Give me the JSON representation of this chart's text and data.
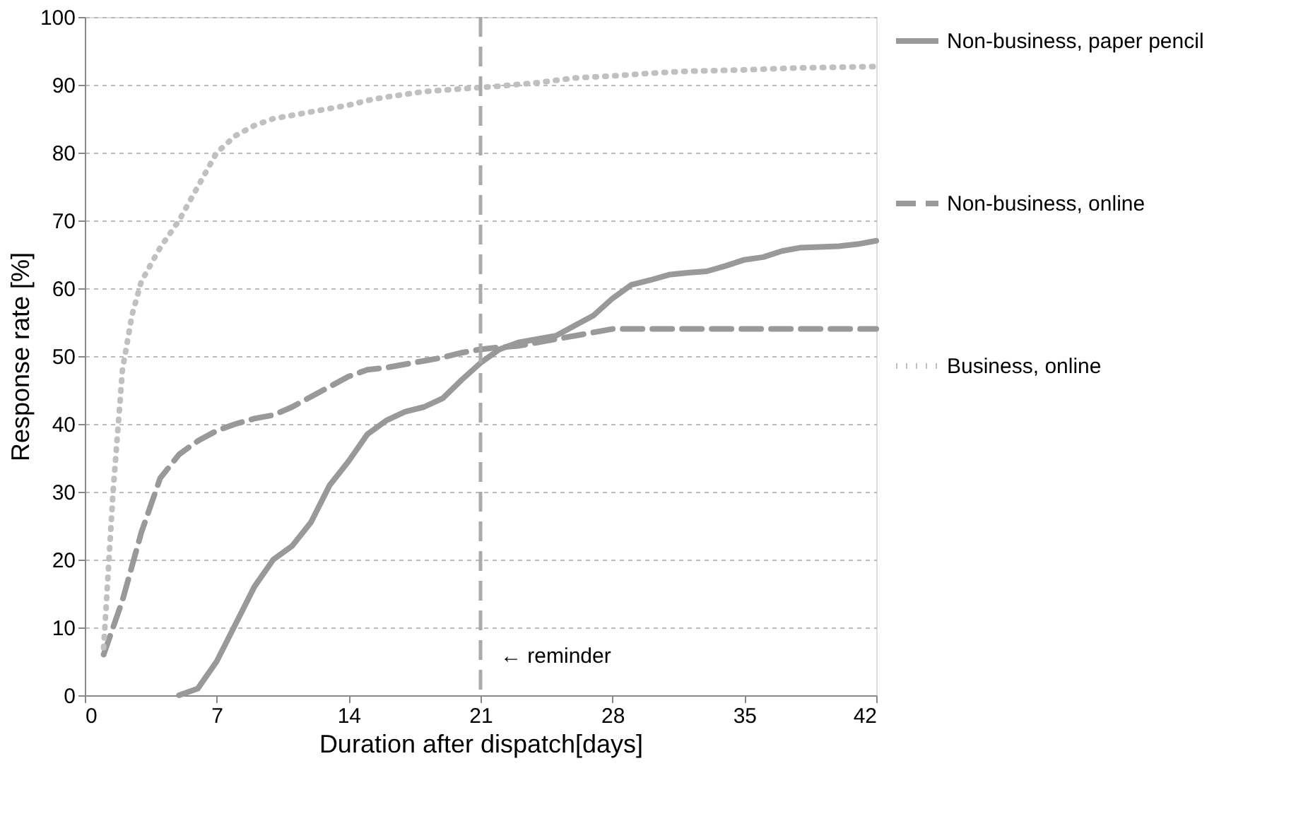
{
  "chart_data": {
    "type": "line",
    "xlabel": "Duration after dispatch[days]",
    "ylabel": "Response rate [%]",
    "xlim": [
      0,
      42
    ],
    "xticks": [
      0,
      7,
      14,
      21,
      28,
      35,
      42
    ],
    "ylim": [
      0,
      100
    ],
    "yticks": [
      0,
      10,
      20,
      30,
      40,
      50,
      60,
      70,
      80,
      90,
      100
    ],
    "grid": "y",
    "legend": "right",
    "marker": "none",
    "series": [
      {
        "name": "Non-business, paper pencil",
        "color": "#999999",
        "line_style": "solid",
        "x": [
          5,
          6,
          7,
          8,
          9,
          10,
          11,
          12,
          13,
          14,
          15,
          16,
          17,
          18,
          19,
          20,
          21,
          22,
          23,
          24,
          25,
          26,
          27,
          28,
          29,
          30,
          31,
          32,
          33,
          34,
          35,
          36,
          37,
          38,
          39,
          40,
          41,
          42
        ],
        "values": [
          0,
          1,
          5,
          10.5,
          16,
          20,
          22,
          25.5,
          31,
          34.5,
          38.5,
          40.5,
          41.8,
          42.5,
          43.8,
          46.5,
          49,
          51,
          52,
          52.5,
          53,
          54.5,
          56,
          58.5,
          60.5,
          61.2,
          62,
          62.3,
          62.5,
          63.3,
          64.2,
          64.6,
          65.5,
          66,
          66.1,
          66.2,
          66.5,
          67
        ]
      },
      {
        "name": "Non-business, online",
        "color": "#999999",
        "line_style": "dashed",
        "x": [
          1,
          2,
          3,
          4,
          5,
          6,
          7,
          8,
          9,
          10,
          11,
          12,
          13,
          14,
          15,
          16,
          17,
          18,
          19,
          20,
          21,
          22,
          23,
          24,
          25,
          26,
          27,
          28,
          30,
          35,
          42
        ],
        "values": [
          6,
          14,
          24,
          32,
          35.5,
          37.5,
          39,
          40,
          40.8,
          41.3,
          42.5,
          44,
          45.5,
          47,
          48,
          48.3,
          48.8,
          49.3,
          49.8,
          50.5,
          51,
          51.3,
          51.5,
          52,
          52.5,
          53,
          53.5,
          54,
          54,
          54,
          54
        ]
      },
      {
        "name": "Business, online",
        "color": "#c0c0c0",
        "line_style": "dotted",
        "x": [
          1,
          1.5,
          2,
          2.5,
          3,
          4,
          5,
          6,
          7,
          8,
          9,
          10,
          11,
          12,
          13,
          14,
          15,
          16,
          17,
          18,
          19,
          20,
          21,
          22,
          24,
          26,
          28,
          30,
          32,
          35,
          38,
          42
        ],
        "values": [
          7,
          30,
          48,
          56,
          61,
          66,
          70,
          75,
          80,
          82.5,
          84,
          85,
          85.5,
          86,
          86.5,
          87,
          87.7,
          88.2,
          88.6,
          89,
          89.2,
          89.4,
          89.6,
          89.8,
          90.3,
          91,
          91.3,
          91.7,
          92,
          92.2,
          92.5,
          92.7
        ]
      }
    ],
    "ref_lines": [
      {
        "axis": "x",
        "value": 21,
        "label": "← reminder",
        "color": "#aaaaaa",
        "line_style": "dashed"
      }
    ]
  }
}
